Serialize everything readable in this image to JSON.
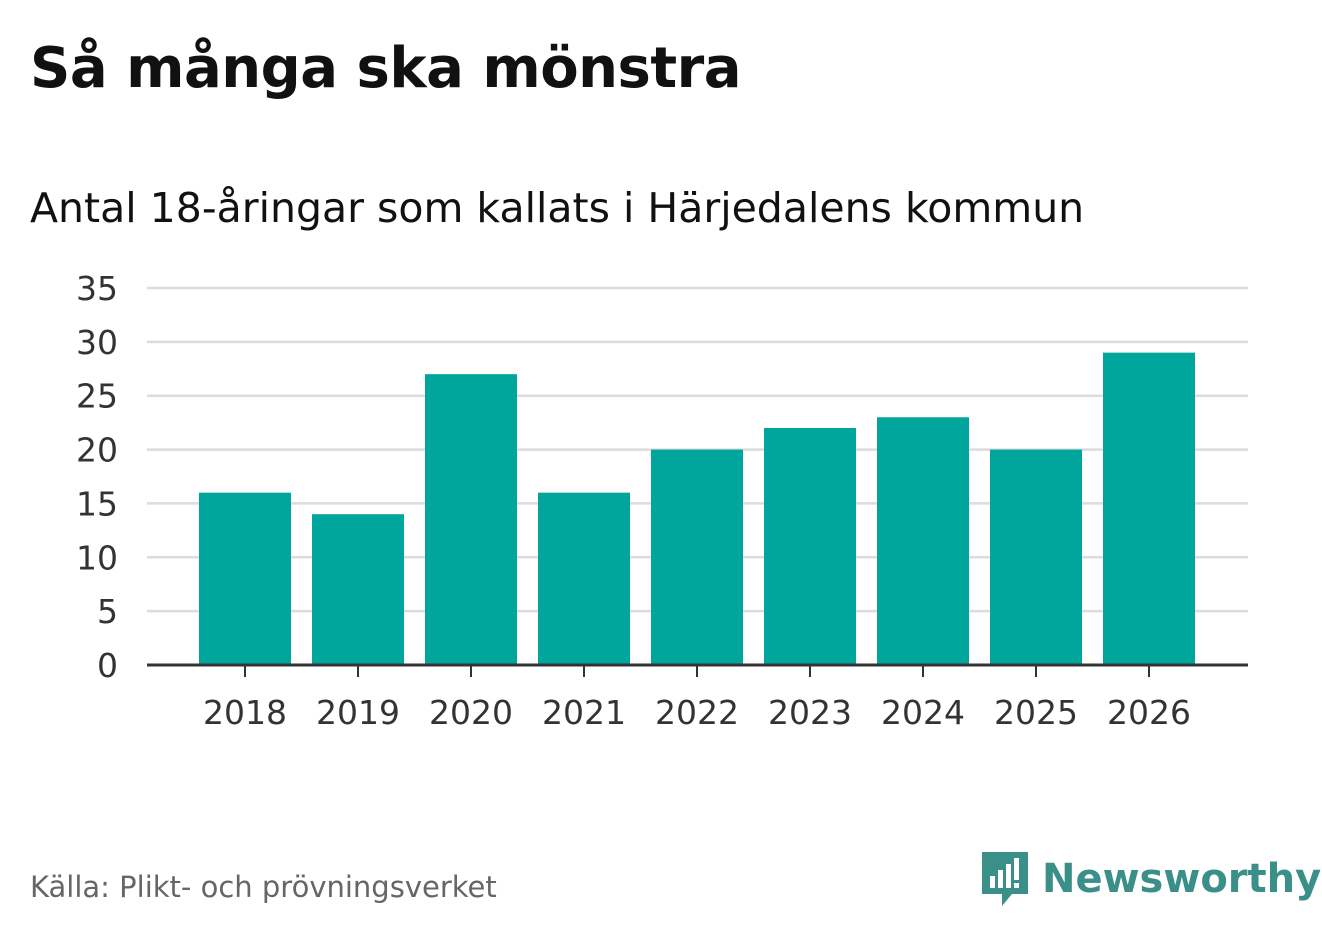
{
  "colors": {
    "bar": "#00a59b",
    "grid": "#dcdcdc",
    "axis": "#333333",
    "brand": "#3a8f88"
  },
  "chart_data": {
    "type": "bar",
    "title": "Så många ska mönstra",
    "subtitle": "Antal 18-åringar som kallats i Härjedalens kommun",
    "categories": [
      "2018",
      "2019",
      "2020",
      "2021",
      "2022",
      "2023",
      "2024",
      "2025",
      "2026"
    ],
    "values": [
      16,
      14,
      27,
      16,
      20,
      22,
      23,
      20,
      29
    ],
    "yticks": [
      0,
      5,
      10,
      15,
      20,
      25,
      30,
      35
    ],
    "ylim": [
      0,
      35
    ],
    "xlabel": "",
    "ylabel": "",
    "grid": true
  },
  "footer": {
    "source": "Källa: Plikt- och prövningsverket",
    "brand": "Newsworthy"
  }
}
